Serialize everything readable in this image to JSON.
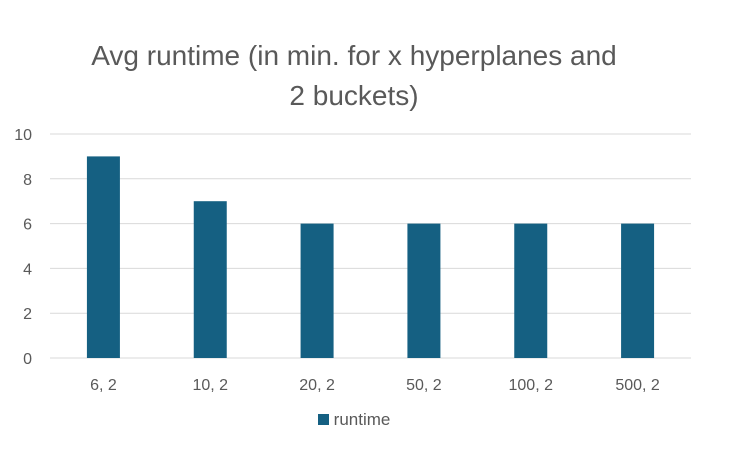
{
  "chart_data": {
    "type": "bar",
    "title_lines": [
      "Avg runtime (in min. for x hyperplanes and",
      "2 buckets)"
    ],
    "categories": [
      "6, 2",
      "10, 2",
      "20, 2",
      "50, 2",
      "100, 2",
      "500, 2"
    ],
    "series": [
      {
        "name": "runtime",
        "values": [
          9,
          7,
          6,
          6,
          6,
          6
        ],
        "color": "#156082"
      }
    ],
    "ylim": [
      0,
      10
    ],
    "yticks": [
      "0",
      "2",
      "4",
      "6",
      "8",
      "10"
    ],
    "grid": true,
    "legend_position": "bottom"
  }
}
